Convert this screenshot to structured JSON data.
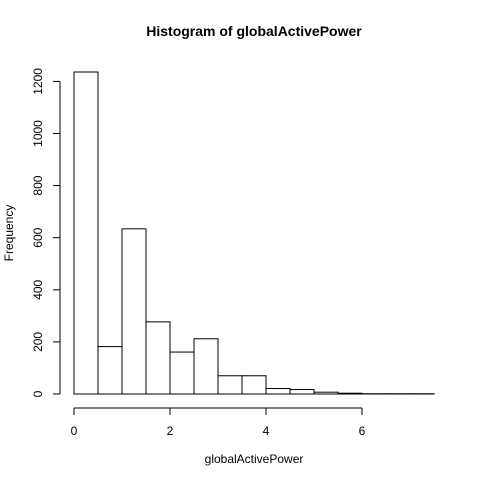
{
  "chart_data": {
    "type": "bar",
    "title": "Histogram of globalActivePower",
    "xlabel": "globalActivePower",
    "ylabel": "Frequency",
    "bin_width": 0.5,
    "bins": [
      {
        "from": 0.0,
        "to": 0.5,
        "count": 1236
      },
      {
        "from": 0.5,
        "to": 1.0,
        "count": 182
      },
      {
        "from": 1.0,
        "to": 1.5,
        "count": 634
      },
      {
        "from": 1.5,
        "to": 2.0,
        "count": 277
      },
      {
        "from": 2.0,
        "to": 2.5,
        "count": 161
      },
      {
        "from": 2.5,
        "to": 3.0,
        "count": 212
      },
      {
        "from": 3.0,
        "to": 3.5,
        "count": 70
      },
      {
        "from": 3.5,
        "to": 4.0,
        "count": 70
      },
      {
        "from": 4.0,
        "to": 4.5,
        "count": 21
      },
      {
        "from": 4.5,
        "to": 5.0,
        "count": 17
      },
      {
        "from": 5.0,
        "to": 5.5,
        "count": 7
      },
      {
        "from": 5.5,
        "to": 6.0,
        "count": 3
      },
      {
        "from": 6.0,
        "to": 6.5,
        "count": 1
      },
      {
        "from": 6.5,
        "to": 7.0,
        "count": 1
      },
      {
        "from": 7.0,
        "to": 7.5,
        "count": 1
      }
    ],
    "x_ticks": [
      0,
      2,
      4,
      6
    ],
    "y_ticks": [
      0,
      200,
      400,
      600,
      800,
      1000,
      1200
    ],
    "xlim": [
      0,
      7.5
    ],
    "ylim": [
      0,
      1236
    ],
    "grid": false,
    "legend": "none"
  }
}
